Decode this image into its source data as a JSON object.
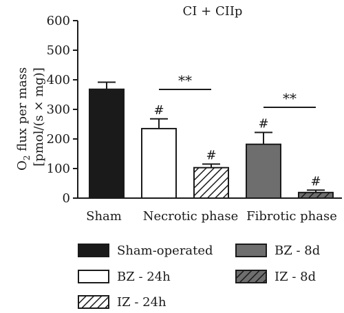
{
  "chart_data": {
    "type": "bar",
    "title": "CI + CIIp",
    "ylabel_line1": "O",
    "ylabel_sub": "2",
    "ylabel_line1_rest": " flux per mass",
    "ylabel_line2": "[pmol/(s × mg)]",
    "ylim": [
      0,
      600
    ],
    "yticks": [
      "0",
      "100",
      "200",
      "300",
      "400",
      "500",
      "600"
    ],
    "group_labels": [
      "Sham",
      "Necrotic phase",
      "Fibrotic phase"
    ],
    "series": [
      {
        "name": "Sham-operated",
        "value": 368,
        "error": 24,
        "group": 0,
        "marker": "",
        "fill": "#1a1a1a",
        "pattern": false
      },
      {
        "name": "BZ - 24h",
        "value": 235,
        "error": 33,
        "group": 1,
        "marker": "#",
        "fill": "#ffffff",
        "pattern": false
      },
      {
        "name": "IZ - 24h",
        "value": 103,
        "error": 12,
        "group": 1,
        "marker": "#",
        "fill": "#ffffff",
        "pattern": true
      },
      {
        "name": "BZ - 8d",
        "value": 182,
        "error": 40,
        "group": 2,
        "marker": "#",
        "fill": "#6e6e6e",
        "pattern": false
      },
      {
        "name": "IZ - 8d",
        "value": 19,
        "error": 8,
        "group": 2,
        "marker": "#",
        "fill": "#6e6e6e",
        "pattern": true
      }
    ],
    "significance": [
      {
        "label": "**",
        "from": 1,
        "to": 2
      },
      {
        "label": "**",
        "from": 3,
        "to": 4
      }
    ],
    "legend_placement": "bottom",
    "grid": false
  }
}
